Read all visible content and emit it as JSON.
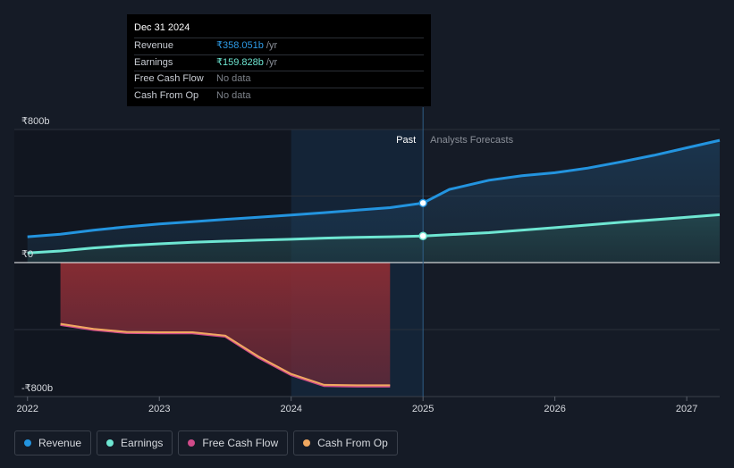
{
  "colors": {
    "background": "#151b26",
    "revenue": "#2394df",
    "earnings": "#6ee6d2",
    "free_cash_flow": "#d04b8a",
    "cash_from_op": "#f0a860",
    "cash_area": "#8b2d34"
  },
  "tooltip": {
    "date": "Dec 31 2024",
    "rows": [
      {
        "label": "Revenue",
        "value": "₹358.051b",
        "unit": "/yr",
        "color": "#2e9be6"
      },
      {
        "label": "Earnings",
        "value": "₹159.828b",
        "unit": "/yr",
        "color": "#6ee6d2"
      },
      {
        "label": "Free Cash Flow",
        "value": "No data",
        "unit": "",
        "color": "#7d828a"
      },
      {
        "label": "Cash From Op",
        "value": "No data",
        "unit": "",
        "color": "#7d828a"
      }
    ]
  },
  "chart_data": {
    "type": "area",
    "xlim": [
      2021.9,
      2027.25
    ],
    "ylim": [
      -860,
      830
    ],
    "y_ticks": [
      {
        "value": 800,
        "label": "₹800b"
      },
      {
        "value": 0,
        "label": "₹0"
      },
      {
        "value": -800,
        "label": "-₹800b"
      }
    ],
    "x_ticks": [
      {
        "value": 2022,
        "label": "2022"
      },
      {
        "value": 2023,
        "label": "2023"
      },
      {
        "value": 2024,
        "label": "2024"
      },
      {
        "value": 2025,
        "label": "2025"
      },
      {
        "value": 2026,
        "label": "2026"
      },
      {
        "value": 2027,
        "label": "2027"
      }
    ],
    "divider_x": 2025,
    "highlight_start_x": 2024,
    "past_label": "Past",
    "forecast_label": "Analysts Forecasts",
    "series": [
      {
        "name": "Revenue",
        "key": "revenue",
        "points": [
          [
            2022,
            155
          ],
          [
            2022.25,
            170
          ],
          [
            2022.5,
            195
          ],
          [
            2022.75,
            215
          ],
          [
            2023,
            232
          ],
          [
            2023.25,
            246
          ],
          [
            2023.5,
            260
          ],
          [
            2023.75,
            273
          ],
          [
            2024,
            286
          ],
          [
            2024.25,
            300
          ],
          [
            2024.5,
            315
          ],
          [
            2024.75,
            330
          ],
          [
            2025,
            358
          ],
          [
            2025.2,
            440
          ],
          [
            2025.5,
            495
          ],
          [
            2025.75,
            522
          ],
          [
            2026,
            540
          ],
          [
            2026.25,
            568
          ],
          [
            2026.5,
            605
          ],
          [
            2026.75,
            645
          ],
          [
            2027,
            690
          ],
          [
            2027.25,
            735
          ]
        ]
      },
      {
        "name": "Earnings",
        "key": "earnings",
        "points": [
          [
            2022,
            58
          ],
          [
            2022.25,
            70
          ],
          [
            2022.5,
            88
          ],
          [
            2022.75,
            102
          ],
          [
            2023,
            113
          ],
          [
            2023.25,
            122
          ],
          [
            2023.5,
            129
          ],
          [
            2023.75,
            135
          ],
          [
            2024,
            140
          ],
          [
            2024.25,
            147
          ],
          [
            2024.5,
            152
          ],
          [
            2024.75,
            155
          ],
          [
            2025,
            160
          ],
          [
            2025.5,
            180
          ],
          [
            2026,
            210
          ],
          [
            2026.5,
            242
          ],
          [
            2027,
            272
          ],
          [
            2027.25,
            288
          ]
        ]
      },
      {
        "name": "Free Cash Flow",
        "key": "free_cash_flow",
        "points": [
          [
            2022.25,
            -370
          ],
          [
            2022.5,
            -400
          ],
          [
            2022.75,
            -418
          ],
          [
            2023,
            -420
          ],
          [
            2023.25,
            -420
          ],
          [
            2023.5,
            -440
          ],
          [
            2023.75,
            -565
          ],
          [
            2024,
            -670
          ],
          [
            2024.25,
            -735
          ],
          [
            2024.5,
            -738
          ],
          [
            2024.75,
            -738
          ]
        ]
      },
      {
        "name": "Cash From Op",
        "key": "cash_from_op",
        "points": [
          [
            2022.25,
            -366
          ],
          [
            2022.5,
            -396
          ],
          [
            2022.75,
            -414
          ],
          [
            2023,
            -416
          ],
          [
            2023.25,
            -416
          ],
          [
            2023.5,
            -436
          ],
          [
            2023.75,
            -560
          ],
          [
            2024,
            -665
          ],
          [
            2024.25,
            -730
          ],
          [
            2024.5,
            -733
          ],
          [
            2024.75,
            -733
          ]
        ]
      }
    ],
    "markers": [
      {
        "series": "revenue",
        "x": 2025,
        "y": 358.051
      },
      {
        "series": "earnings",
        "x": 2025,
        "y": 159.828
      }
    ]
  },
  "legend": [
    {
      "label": "Revenue",
      "key": "revenue"
    },
    {
      "label": "Earnings",
      "key": "earnings"
    },
    {
      "label": "Free Cash Flow",
      "key": "free_cash_flow"
    },
    {
      "label": "Cash From Op",
      "key": "cash_from_op"
    }
  ]
}
